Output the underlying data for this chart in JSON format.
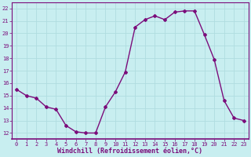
{
  "x": [
    0,
    1,
    2,
    3,
    4,
    5,
    6,
    7,
    8,
    9,
    10,
    11,
    12,
    13,
    14,
    15,
    16,
    17,
    18,
    19,
    20,
    21,
    22,
    23
  ],
  "y": [
    15.5,
    15.0,
    14.8,
    14.1,
    13.9,
    12.6,
    12.1,
    12.0,
    12.0,
    14.1,
    15.3,
    16.9,
    20.5,
    21.1,
    21.4,
    21.1,
    21.7,
    21.8,
    21.8,
    19.9,
    17.9,
    14.6,
    13.2,
    13.0
  ],
  "line_color": "#7B0D7B",
  "marker": "D",
  "marker_size": 2.0,
  "bg_color": "#c8eef0",
  "grid_color": "#b0dde0",
  "xlabel": "Windchill (Refroidissement éolien,°C)",
  "xlabel_color": "#7B0D7B",
  "tick_color": "#7B0D7B",
  "spine_color": "#7B0D7B",
  "ylim": [
    11.5,
    22.5
  ],
  "xlim": [
    -0.5,
    23.5
  ],
  "yticks": [
    12,
    13,
    14,
    15,
    16,
    17,
    18,
    19,
    20,
    21,
    22
  ],
  "xticks": [
    0,
    1,
    2,
    3,
    4,
    5,
    6,
    7,
    8,
    9,
    10,
    11,
    12,
    13,
    14,
    15,
    16,
    17,
    18,
    19,
    20,
    21,
    22,
    23
  ],
  "tick_fontsize": 5.0,
  "xlabel_fontsize": 6.0,
  "linewidth": 1.0
}
